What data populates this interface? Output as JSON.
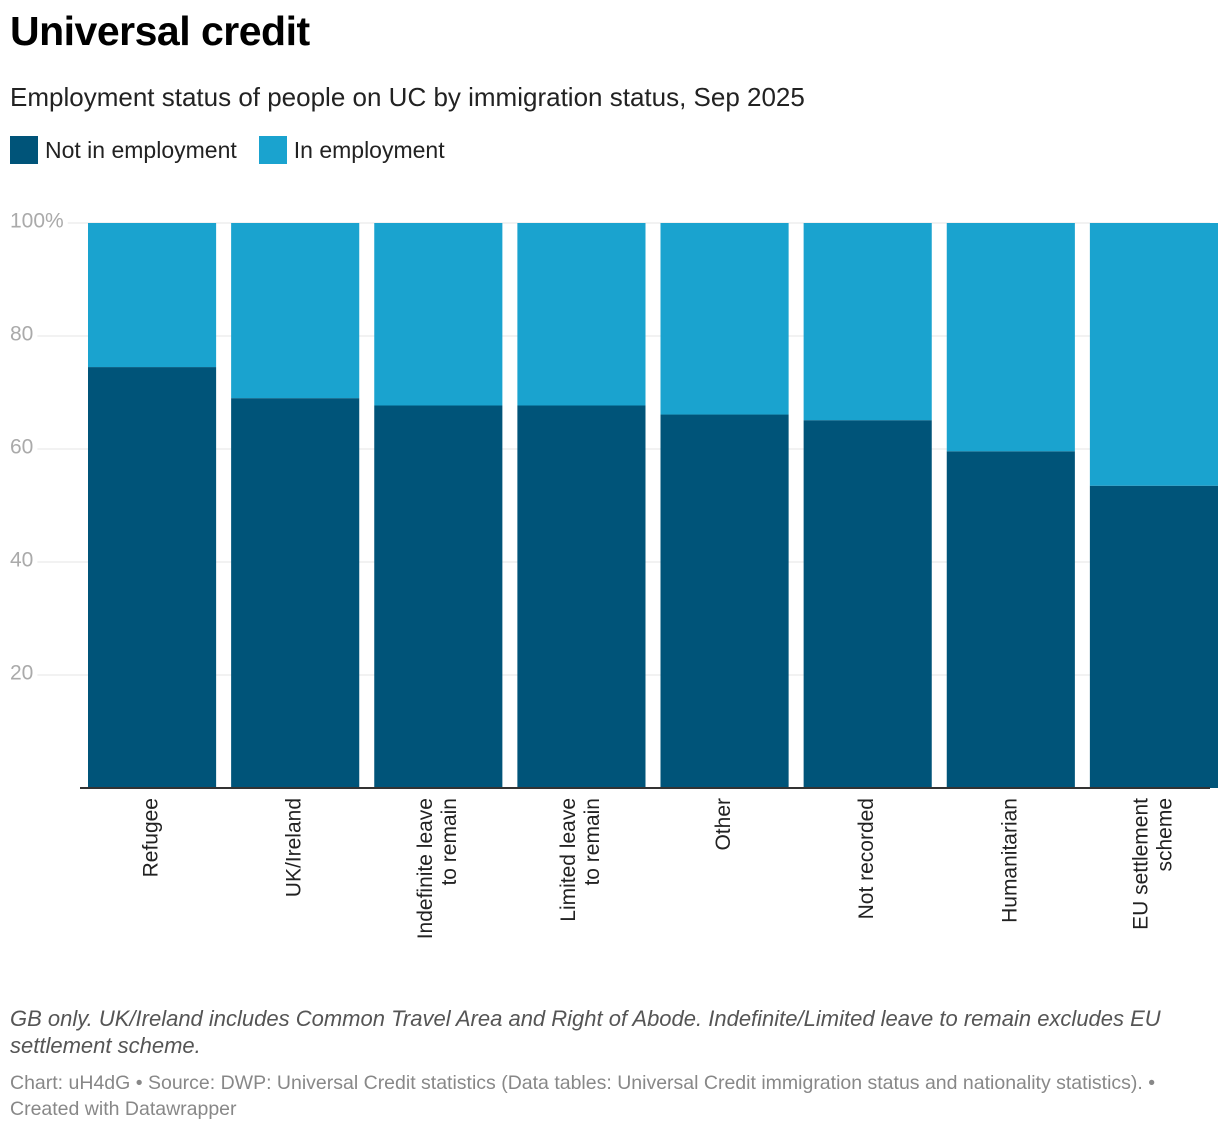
{
  "header": {
    "title": "Universal credit",
    "subtitle": "Employment status of people on UC by immigration status, Sep 2025"
  },
  "colors": {
    "not_employed": "#005479",
    "employed": "#1aa3cf",
    "gridline": "#e6e6e6",
    "axis": "#333333",
    "tick_text": "#aaaaaa"
  },
  "chart_data": {
    "type": "bar",
    "stacked": true,
    "percent_stacked": true,
    "title": "Universal credit",
    "subtitle": "Employment status of people on UC by immigration status, Sep 2025",
    "legend_position": "top-left",
    "categories": [
      "Refugee",
      "UK/Ireland",
      "Indefinite leave to remain",
      "Limited leave to remain",
      "Other",
      "Not recorded",
      "Humanitarian",
      "EU settlement scheme"
    ],
    "category_lines": [
      [
        "Refugee"
      ],
      [
        "UK/Ireland"
      ],
      [
        "Indefinite leave",
        "to remain"
      ],
      [
        "Limited leave",
        "to remain"
      ],
      [
        "Other"
      ],
      [
        "Not recorded"
      ],
      [
        "Humanitarian"
      ],
      [
        "EU settlement",
        "scheme"
      ]
    ],
    "series": [
      {
        "name": "Not in employment",
        "values": [
          74.5,
          69,
          67.7,
          67.7,
          66.1,
          65.1,
          59.6,
          53.5
        ]
      },
      {
        "name": "In employment",
        "values": [
          25.5,
          31,
          32.3,
          32.3,
          33.9,
          34.9,
          40.4,
          46.5
        ]
      }
    ],
    "ylim": [
      0,
      100
    ],
    "yticks": [
      20,
      40,
      60,
      80,
      100
    ],
    "ytick_labels": [
      "20",
      "40",
      "60",
      "80",
      "100%"
    ],
    "grid": true,
    "xlabel": "",
    "ylabel": ""
  },
  "notes": "GB only. UK/Ireland includes Common Travel Area and Right of Abode. Indefinite/Limited leave to remain excludes EU settlement scheme.",
  "footer": "Chart: uH4dG • Source: DWP: Universal Credit statistics (Data tables: Universal Credit immigration status and nationality statistics). • Created with Datawrapper"
}
